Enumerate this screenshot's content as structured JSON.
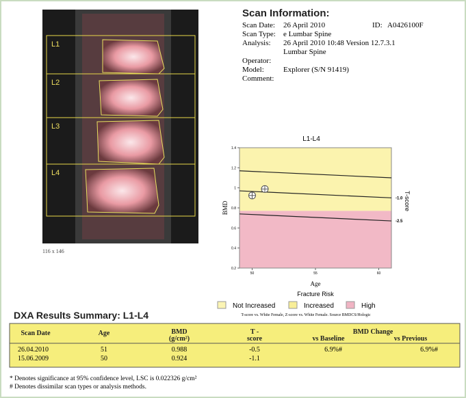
{
  "scan_image": {
    "labels": [
      "L1",
      "L2",
      "L3",
      "L4"
    ],
    "caption": "116 x 146"
  },
  "scan_info": {
    "title": "Scan Information:",
    "id_label": "ID:",
    "id_value": "A0426100F",
    "fields": [
      {
        "label": "Scan Date:",
        "lines": [
          "26 April 2010"
        ]
      },
      {
        "label": "Scan Type:",
        "lines": [
          "e Lumbar Spine"
        ]
      },
      {
        "label": "Analysis:",
        "lines": [
          "26 April 2010 10:48 Version 12.7.3.1",
          "Lumbar Spine"
        ]
      },
      {
        "label": "Operator:"
      },
      {
        "label": "Model:",
        "lines": [
          "Explorer (S/N 91419)"
        ]
      },
      {
        "label": "Comment:"
      }
    ]
  },
  "bmd_chart": {
    "title": "L1-L4",
    "xlabel": "Age",
    "ylabel": "BMD",
    "y2label": "T-score",
    "xlim": [
      49,
      61
    ],
    "xticks": [
      50,
      55,
      60
    ],
    "ylim": [
      0.2,
      1.4
    ],
    "yticks": [
      0.2,
      0.4,
      0.6,
      0.8,
      1.0,
      1.2,
      1.4
    ],
    "reference_lines": [
      {
        "values": [
          1.17,
          1.1
        ]
      },
      {
        "label": "-1.0",
        "values": [
          0.97,
          0.9
        ]
      },
      {
        "label": "-2.5",
        "values": [
          0.74,
          0.67
        ]
      }
    ],
    "region_boundary": 0.77,
    "upper_color": "#fbf3ae",
    "lower_color": "#f2b9c6",
    "legend_title": "Fracture Risk",
    "legend": [
      {
        "name": "Not Increased",
        "color": "#fbf4b4"
      },
      {
        "name": "Increased",
        "color": "#f8ee98"
      },
      {
        "name": "High",
        "color": "#f0b4c3"
      }
    ],
    "footnote": "T-score vs. White Female, Z-score vs. White Female. Source BMDCS/Hologic"
  },
  "results": {
    "title": "DXA Results Summary: L1-L4",
    "header": {
      "date": "Scan Date",
      "age": "Age",
      "bmd": "BMD",
      "bmd_unit": "(g/cm²)",
      "t1": "T -",
      "t2": "score",
      "change": "BMD Change",
      "baseline": "vs Baseline",
      "previous": "vs Previous"
    },
    "rows": [
      {
        "date": "26.04.2010",
        "age": 51,
        "bmd": 0.988,
        "t_score": -0.5,
        "vs_baseline": "6.9%#",
        "vs_previous": "6.9%#"
      },
      {
        "date": "15.06.2009",
        "age": 50,
        "bmd": 0.924,
        "t_score": -1.1
      }
    ]
  },
  "footnotes": [
    "* Denotes significance at 95% confidence level, LSC is 0.022326 g/cm²",
    "# Denotes dissimilar scan types or analysis methods."
  ]
}
